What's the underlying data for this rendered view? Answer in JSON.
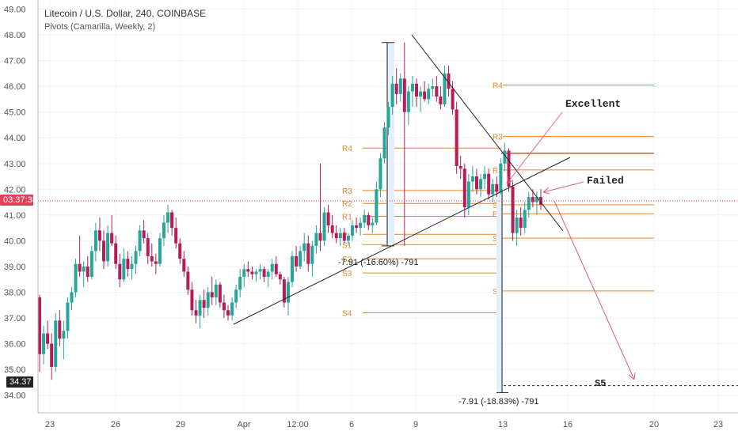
{
  "header": {
    "title": "Litecoin / U.S. Dollar, 240, COINBASE",
    "indicator": "Pivots (Camarilla, Weekly, 2)"
  },
  "colors": {
    "up": "#26a69a",
    "down": "#b71c56",
    "pivot": "#e8862a",
    "annotation": "#e0607a",
    "trend": "#222222",
    "crosshair": "#e0405a",
    "measure_fill": "#e3effa"
  },
  "price_tags": {
    "countdown": "03:37:38",
    "target": "34.37"
  },
  "annotations": {
    "excellent": "Excellent",
    "failed": "Failed",
    "s5": "S5",
    "measure_1": "-7.91 (-16.60%) -791",
    "measure_2": "-7.91 (-18.83%) -791"
  },
  "chart_data": {
    "type": "candlestick",
    "title": "Litecoin / U.S. Dollar, 240, COINBASE",
    "ylim": [
      33.5,
      49.3
    ],
    "y_ticks": [
      34.0,
      35.0,
      36.0,
      37.0,
      38.0,
      39.0,
      40.0,
      41.0,
      42.0,
      43.0,
      44.0,
      45.0,
      46.0,
      47.0,
      48.0,
      49.0
    ],
    "x_ticks": [
      "23",
      "26",
      "29",
      "Apr",
      "12:00",
      "6",
      "9",
      "13",
      "16",
      "20",
      "23"
    ],
    "pivot_labels_week1": [
      "R4",
      "R3",
      "R2",
      "R1",
      "P",
      "S1",
      "S2",
      "S3",
      "S4"
    ],
    "pivot_values_week1": [
      43.6,
      41.95,
      41.45,
      40.95,
      40.25,
      39.85,
      39.3,
      38.75,
      37.2
    ],
    "pivot_labels_week2": [
      "R4",
      "R3",
      "R1",
      "S1",
      "P",
      "S3",
      "S4"
    ],
    "pivot_values_week2": [
      46.05,
      44.05,
      42.75,
      41.4,
      41.05,
      40.1,
      38.05
    ],
    "extra_level": 43.4,
    "s5_level": 34.4,
    "ohlc": [
      [
        37.8,
        37.9,
        34.9,
        35.6
      ],
      [
        35.6,
        36.7,
        35.2,
        36.4
      ],
      [
        36.4,
        36.9,
        35.8,
        36.0
      ],
      [
        36.0,
        36.4,
        34.6,
        35.1
      ],
      [
        35.1,
        37.2,
        34.9,
        36.9
      ],
      [
        36.9,
        37.3,
        35.9,
        36.2
      ],
      [
        36.2,
        36.9,
        35.4,
        36.5
      ],
      [
        36.5,
        37.8,
        36.2,
        37.6
      ],
      [
        37.6,
        38.2,
        37.3,
        38.0
      ],
      [
        38.0,
        39.3,
        37.8,
        39.1
      ],
      [
        39.1,
        40.2,
        38.6,
        38.8
      ],
      [
        38.8,
        39.2,
        38.2,
        39.0
      ],
      [
        39.0,
        39.4,
        38.4,
        38.6
      ],
      [
        38.6,
        39.8,
        38.5,
        39.6
      ],
      [
        39.6,
        40.7,
        39.2,
        40.4
      ],
      [
        40.4,
        40.9,
        39.6,
        40.0
      ],
      [
        40.0,
        40.4,
        38.9,
        39.2
      ],
      [
        39.2,
        40.6,
        39.0,
        40.3
      ],
      [
        40.3,
        41.0,
        39.8,
        39.9
      ],
      [
        39.9,
        40.2,
        38.9,
        39.1
      ],
      [
        39.1,
        39.5,
        38.2,
        38.5
      ],
      [
        38.5,
        39.7,
        38.4,
        39.3
      ],
      [
        39.3,
        39.6,
        38.6,
        38.9
      ],
      [
        38.9,
        39.4,
        38.5,
        39.1
      ],
      [
        39.1,
        39.8,
        38.7,
        39.6
      ],
      [
        39.6,
        40.6,
        39.4,
        40.4
      ],
      [
        40.4,
        40.8,
        39.9,
        40.1
      ],
      [
        40.1,
        40.3,
        39.1,
        39.4
      ],
      [
        39.4,
        39.9,
        39.0,
        39.2
      ],
      [
        39.2,
        39.5,
        38.7,
        39.1
      ],
      [
        39.1,
        40.3,
        39.0,
        40.1
      ],
      [
        40.1,
        41.0,
        39.8,
        40.7
      ],
      [
        40.7,
        41.4,
        40.3,
        41.1
      ],
      [
        41.1,
        41.2,
        40.2,
        40.5
      ],
      [
        40.5,
        40.9,
        39.7,
        39.9
      ],
      [
        39.9,
        40.1,
        39.1,
        39.3
      ],
      [
        39.3,
        39.6,
        38.6,
        38.8
      ],
      [
        38.8,
        39.0,
        37.9,
        38.1
      ],
      [
        38.1,
        38.4,
        37.1,
        37.3
      ],
      [
        37.3,
        37.7,
        36.8,
        37.1
      ],
      [
        37.1,
        37.9,
        36.6,
        37.7
      ],
      [
        37.7,
        38.1,
        37.0,
        37.4
      ],
      [
        37.4,
        38.2,
        37.1,
        38.0
      ],
      [
        38.0,
        38.6,
        37.5,
        37.8
      ],
      [
        37.8,
        38.5,
        37.5,
        38.3
      ],
      [
        38.3,
        38.4,
        37.4,
        37.6
      ],
      [
        37.6,
        37.9,
        37.0,
        37.3
      ],
      [
        37.3,
        37.5,
        36.9,
        37.1
      ],
      [
        37.1,
        37.8,
        36.9,
        37.6
      ],
      [
        37.6,
        38.3,
        37.4,
        38.1
      ],
      [
        38.1,
        38.9,
        37.8,
        38.6
      ],
      [
        38.6,
        39.1,
        38.2,
        38.9
      ],
      [
        38.9,
        39.2,
        38.6,
        38.8
      ],
      [
        38.8,
        39.0,
        38.5,
        38.7
      ],
      [
        38.7,
        38.9,
        38.4,
        38.8
      ],
      [
        38.8,
        39.1,
        38.5,
        38.9
      ],
      [
        38.9,
        39.0,
        38.4,
        38.6
      ],
      [
        38.6,
        38.9,
        38.2,
        38.8
      ],
      [
        38.8,
        39.3,
        38.5,
        39.1
      ],
      [
        39.1,
        39.4,
        38.6,
        38.7
      ],
      [
        38.7,
        38.8,
        38.3,
        38.5
      ],
      [
        38.5,
        38.6,
        37.4,
        37.6
      ],
      [
        37.6,
        38.6,
        37.1,
        38.4
      ],
      [
        38.4,
        39.6,
        38.2,
        39.4
      ],
      [
        39.4,
        39.8,
        38.8,
        39.0
      ],
      [
        39.0,
        39.8,
        38.9,
        39.6
      ],
      [
        39.6,
        40.3,
        39.2,
        39.9
      ],
      [
        39.9,
        40.2,
        38.8,
        39.1
      ],
      [
        39.1,
        40.0,
        38.6,
        39.8
      ],
      [
        39.8,
        40.6,
        39.5,
        40.3
      ],
      [
        40.3,
        43.0,
        39.6,
        40.0
      ],
      [
        40.0,
        41.3,
        39.8,
        41.1
      ],
      [
        41.1,
        41.4,
        40.3,
        40.6
      ],
      [
        40.6,
        41.0,
        40.1,
        40.3
      ],
      [
        40.3,
        40.6,
        39.9,
        40.1
      ],
      [
        40.1,
        40.5,
        39.8,
        40.3
      ],
      [
        40.3,
        40.5,
        39.9,
        40.0
      ],
      [
        40.0,
        40.3,
        39.8,
        40.2
      ],
      [
        40.2,
        40.8,
        40.0,
        40.6
      ],
      [
        40.6,
        40.9,
        40.3,
        40.5
      ],
      [
        40.5,
        40.9,
        40.2,
        40.7
      ],
      [
        40.7,
        41.2,
        40.5,
        41.0
      ],
      [
        41.0,
        41.1,
        40.4,
        40.6
      ],
      [
        40.6,
        40.9,
        40.3,
        40.7
      ],
      [
        40.7,
        42.3,
        40.6,
        42.0
      ],
      [
        42.0,
        43.4,
        41.7,
        43.2
      ],
      [
        43.2,
        44.6,
        43.0,
        44.4
      ],
      [
        44.4,
        45.4,
        44.1,
        45.2
      ],
      [
        45.2,
        46.4,
        44.9,
        46.1
      ],
      [
        46.1,
        46.7,
        45.3,
        45.7
      ],
      [
        45.7,
        46.5,
        45.4,
        46.3
      ],
      [
        46.3,
        47.7,
        39.8,
        45.0
      ],
      [
        45.0,
        46.0,
        44.5,
        45.8
      ],
      [
        45.8,
        46.4,
        45.2,
        46.1
      ],
      [
        46.1,
        46.3,
        45.2,
        45.6
      ],
      [
        45.6,
        46.0,
        45.0,
        45.8
      ],
      [
        45.8,
        46.2,
        45.4,
        45.5
      ],
      [
        45.5,
        46.1,
        45.3,
        45.9
      ],
      [
        45.9,
        46.3,
        45.6,
        46.0
      ],
      [
        46.0,
        46.4,
        45.4,
        45.6
      ],
      [
        45.6,
        46.0,
        45.1,
        45.3
      ],
      [
        45.3,
        46.8,
        45.2,
        46.5
      ],
      [
        46.5,
        46.8,
        45.6,
        45.9
      ],
      [
        45.9,
        46.2,
        44.9,
        45.1
      ],
      [
        45.1,
        45.4,
        42.6,
        42.9
      ],
      [
        42.9,
        43.3,
        42.4,
        42.8
      ],
      [
        42.8,
        43.0,
        40.9,
        41.3
      ],
      [
        41.3,
        42.6,
        41.0,
        42.3
      ],
      [
        42.3,
        42.9,
        41.9,
        42.5
      ],
      [
        42.5,
        42.8,
        41.8,
        42.0
      ],
      [
        42.0,
        42.6,
        41.7,
        42.4
      ],
      [
        42.4,
        42.9,
        42.0,
        42.6
      ],
      [
        42.6,
        42.8,
        41.6,
        41.8
      ],
      [
        41.8,
        42.4,
        41.5,
        42.2
      ],
      [
        42.2,
        42.5,
        41.7,
        41.9
      ],
      [
        41.9,
        43.2,
        41.8,
        43.0
      ],
      [
        43.0,
        43.8,
        42.7,
        43.5
      ],
      [
        43.5,
        43.6,
        41.9,
        42.1
      ],
      [
        42.1,
        42.3,
        40.0,
        40.3
      ],
      [
        40.3,
        41.2,
        39.8,
        40.9
      ],
      [
        40.9,
        41.3,
        40.2,
        40.5
      ],
      [
        40.5,
        41.5,
        40.3,
        41.2
      ],
      [
        41.2,
        41.9,
        40.9,
        41.7
      ],
      [
        41.7,
        42.0,
        41.3,
        41.5
      ],
      [
        41.5,
        41.9,
        41.0,
        41.7
      ],
      [
        41.7,
        42.0,
        41.2,
        41.4
      ]
    ]
  }
}
